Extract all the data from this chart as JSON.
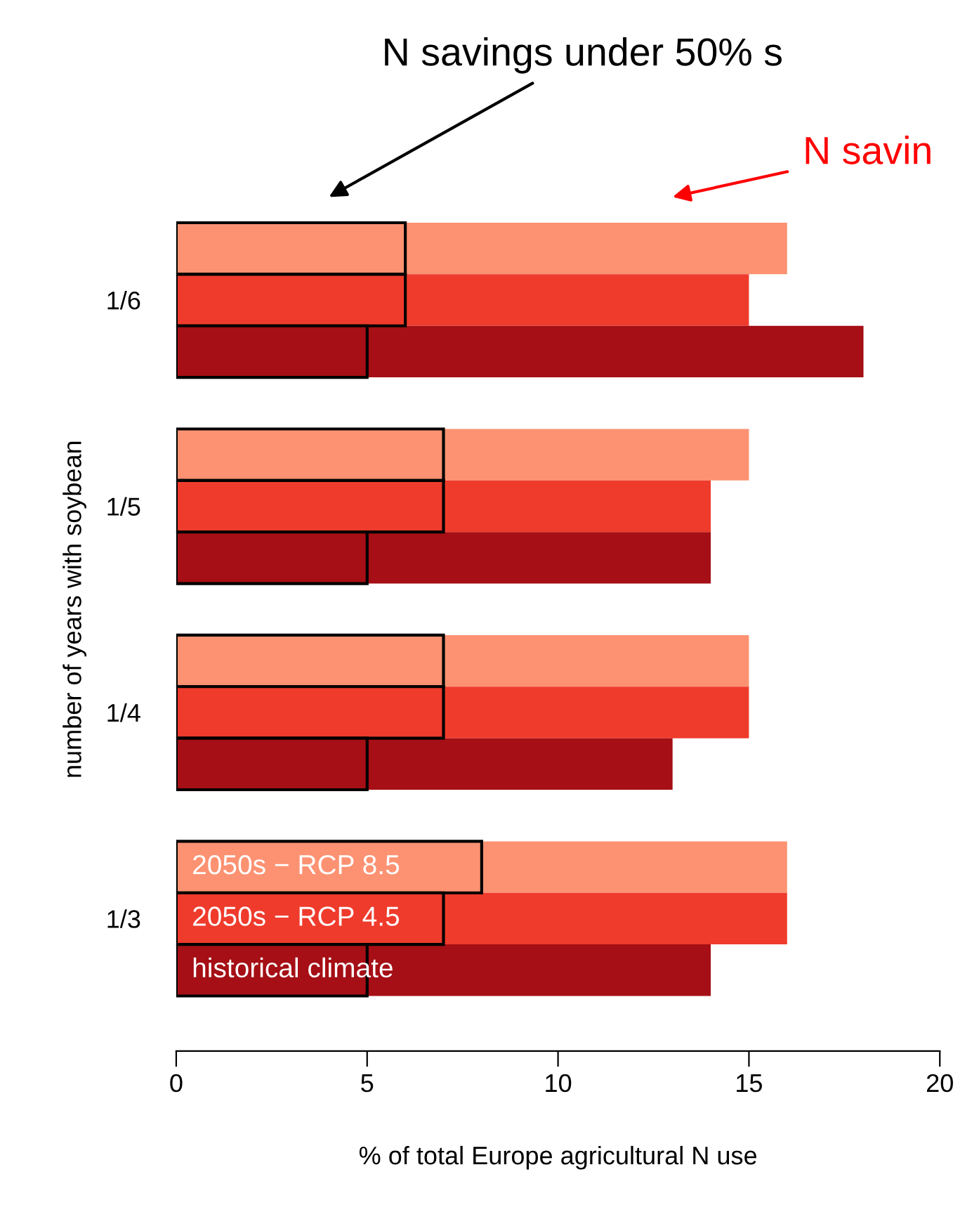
{
  "chart_data": {
    "type": "bar",
    "orientation": "horizontal",
    "stacked": true,
    "categories": [
      null,
      "1/6",
      null,
      null,
      null,
      "1/5",
      null,
      null,
      null,
      "1/4",
      null,
      null,
      null,
      "1/3",
      null
    ],
    "series": [
      {
        "line_style": "solid",
        "values": [
          6,
          6,
          5,
          null,
          7,
          7,
          5,
          null,
          7,
          7,
          5,
          null,
          8,
          7,
          5
        ],
        "colors": [
          "#fc9272",
          "#ef3b2c",
          "#a50f15",
          null,
          "#fc9272",
          "#ef3b2c",
          "#a50f15",
          null,
          "#fc9272",
          "#ef3b2c",
          "#a50f15",
          null,
          "#fc9272",
          "#ef3b2c",
          "#a50f15"
        ]
      },
      {
        "values": [
          10,
          9,
          13,
          null,
          8,
          7,
          9,
          null,
          8,
          8,
          8,
          null,
          8,
          9,
          9
        ],
        "colors": [
          "#fc9272",
          "#ef3b2c",
          "#a50f15",
          null,
          "#fc9272",
          "#ef3b2c",
          "#a50f15",
          null,
          "#fc9272",
          "#ef3b2c",
          "#a50f15",
          null,
          "#fc9272",
          "#ef3b2c",
          "#a50f15"
        ]
      }
    ],
    "xlabel": "% of total Europe agricultural N use",
    "ylabel": "number of years with soybean",
    "xlim": [
      0,
      20
    ],
    "xticks": [
      0,
      5,
      10,
      15,
      20
    ],
    "annotations": [
      "N savings under 50% s",
      "N savin",
      "2050s − RCP 8.5",
      "2050s − RCP 4.5",
      "historical climate"
    ],
    "legend": false,
    "grid": false
  }
}
